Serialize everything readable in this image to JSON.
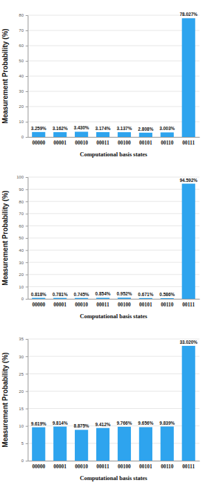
{
  "chart_data": [
    {
      "type": "bar",
      "y_label": "Measurement Probability (%)",
      "x_label": "Computational basis states",
      "categories": [
        "00000",
        "00001",
        "00010",
        "00011",
        "00100",
        "00101",
        "00110",
        "00111"
      ],
      "values": [
        3.259,
        3.162,
        3.43,
        3.174,
        3.137,
        2.808,
        3.003,
        78.027
      ],
      "value_labels": [
        "3.259%",
        "3.162%",
        "3.430%",
        "3.174%",
        "3.137%",
        "2.808%",
        "3.003%",
        "78.027%"
      ],
      "color": "#2ea4ee",
      "ylim": [
        0,
        80
      ],
      "yticks": [
        0,
        10,
        20,
        30,
        40,
        50,
        60,
        70,
        80
      ],
      "grid": true,
      "data_labels": true
    },
    {
      "type": "bar",
      "y_label": "Measurement Probability (%)",
      "x_label": "Computational basis states",
      "categories": [
        "00000",
        "00001",
        "00010",
        "00011",
        "00100",
        "00101",
        "00110",
        "00111"
      ],
      "values": [
        0.818,
        0.781,
        0.745,
        0.854,
        0.952,
        0.671,
        0.586,
        94.592
      ],
      "value_labels": [
        "0.818%",
        "0.781%",
        "0.745%",
        "0.854%",
        "0.952%",
        "0.671%",
        "0.586%",
        "94.592%"
      ],
      "color": "#2ea4ee",
      "ylim": [
        0,
        100
      ],
      "yticks": [
        0,
        10,
        20,
        30,
        40,
        50,
        60,
        70,
        80,
        90,
        100
      ],
      "grid": true,
      "data_labels": true
    },
    {
      "type": "bar",
      "y_label": "Measurement Probability (%)",
      "x_label": "Computational basis states",
      "categories": [
        "00000",
        "00001",
        "00010",
        "00011",
        "00100",
        "00101",
        "00110",
        "00111"
      ],
      "values": [
        9.619,
        9.814,
        8.875,
        9.412,
        9.766,
        9.656,
        9.839,
        33.02
      ],
      "value_labels": [
        "9.619%",
        "9.814%",
        "8.875%",
        "9.412%",
        "9.766%",
        "9.656%",
        "9.839%",
        "33.020%"
      ],
      "color": "#2ea4ee",
      "ylim": [
        0,
        35
      ],
      "yticks": [
        0,
        5,
        10,
        15,
        20,
        25,
        30,
        35
      ],
      "grid": true,
      "data_labels": true
    }
  ]
}
